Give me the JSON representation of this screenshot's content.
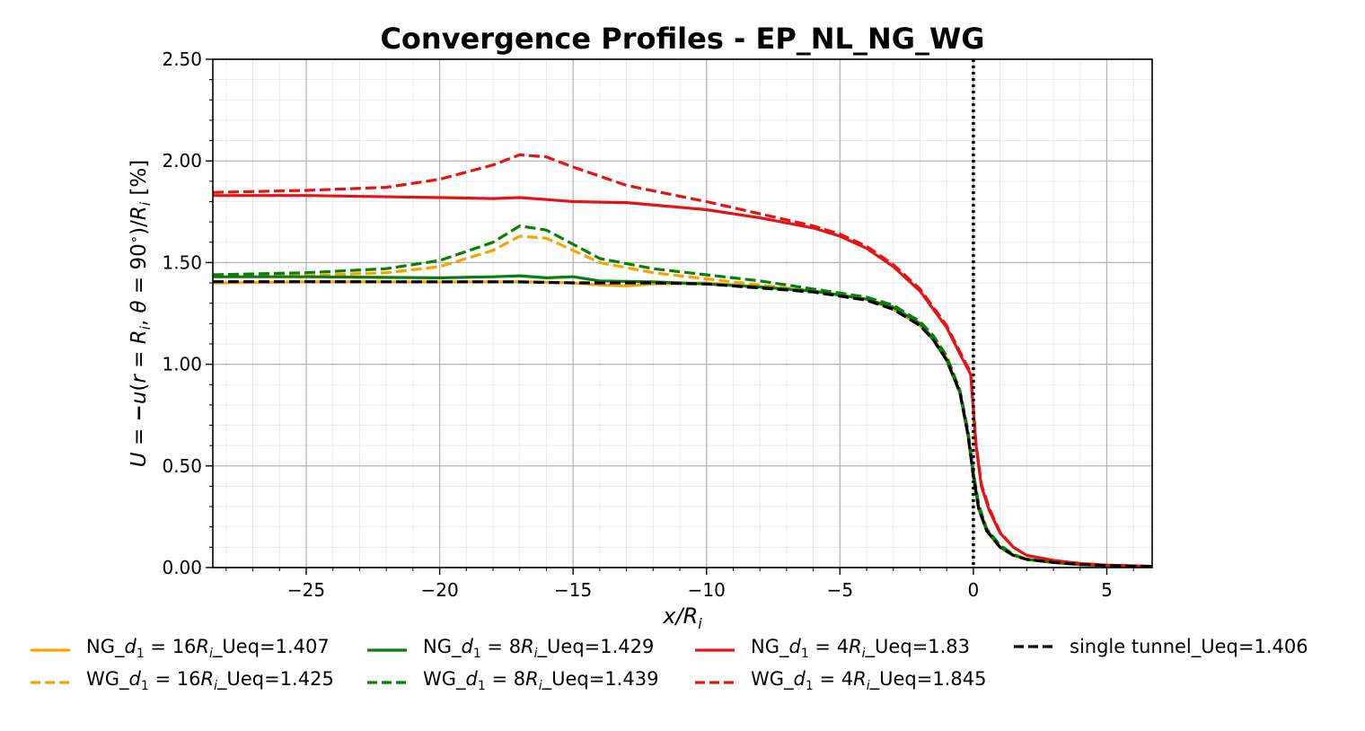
{
  "chart_data": {
    "type": "line",
    "title": "Convergence Profiles - EP_NL_NG_WG",
    "xlabel": "x/R_i",
    "ylabel": "U = −u(r = R_i, θ = 90°)/R_i [%]",
    "xlim": [
      -28.5,
      6.7
    ],
    "ylim": [
      0,
      2.5
    ],
    "xticks": [
      -25,
      -20,
      -15,
      -10,
      -5,
      0,
      5
    ],
    "xtick_labels": [
      "−25",
      "−20",
      "−15",
      "−10",
      "−5",
      "0",
      "5"
    ],
    "yticks": [
      0,
      0.5,
      1.0,
      1.5,
      2.0,
      2.5
    ],
    "ytick_labels": [
      "0.00",
      "0.50",
      "1.00",
      "1.50",
      "2.00",
      "2.50"
    ],
    "grid": true,
    "minor_grid": true,
    "vline": {
      "x": 0,
      "style": "dotted",
      "color": "#000000"
    },
    "legend_placement": "bottom",
    "series": [
      {
        "name": "NG_d1 = 16Ri_Ueq=1.407",
        "color": "#f5a300",
        "dash": "solid",
        "x": [
          -28.5,
          -25,
          -20,
          -17,
          -15,
          -14,
          -13,
          -12,
          -10,
          -8,
          -6,
          -4,
          -3,
          -2,
          -1.5,
          -1,
          -0.5,
          -0.2,
          0,
          0.2,
          0.5,
          1,
          1.5,
          2,
          3,
          4,
          5,
          6.7
        ],
        "y": [
          1.4,
          1.405,
          1.405,
          1.405,
          1.4,
          1.39,
          1.385,
          1.395,
          1.4,
          1.38,
          1.36,
          1.32,
          1.27,
          1.19,
          1.12,
          1.02,
          0.86,
          0.65,
          0.45,
          0.29,
          0.18,
          0.1,
          0.06,
          0.04,
          0.025,
          0.015,
          0.01,
          0.005
        ]
      },
      {
        "name": "WG_d1 = 16Ri_Ueq=1.425",
        "color": "#f5a300",
        "dash": "dashed",
        "x": [
          -28.5,
          -25,
          -22,
          -20,
          -18,
          -17,
          -16,
          -15,
          -14,
          -12,
          -10,
          -8,
          -6,
          -4,
          -3,
          -2,
          -1.5,
          -1,
          -0.5,
          -0.2,
          0,
          0.2,
          0.5,
          1,
          1.5,
          2,
          3,
          4,
          5,
          6.7
        ],
        "y": [
          1.43,
          1.435,
          1.45,
          1.48,
          1.56,
          1.63,
          1.62,
          1.56,
          1.5,
          1.45,
          1.42,
          1.39,
          1.36,
          1.32,
          1.28,
          1.2,
          1.13,
          1.03,
          0.86,
          0.66,
          0.46,
          0.3,
          0.19,
          0.1,
          0.06,
          0.04,
          0.025,
          0.015,
          0.01,
          0.005
        ]
      },
      {
        "name": "NG_d1 = 8Ri_Ueq=1.429",
        "color": "#0a7d0a",
        "dash": "solid",
        "x": [
          -28.5,
          -25,
          -20,
          -18,
          -17,
          -16,
          -15,
          -14,
          -12,
          -10,
          -8,
          -6,
          -4,
          -3,
          -2,
          -1.5,
          -1,
          -0.5,
          -0.2,
          0,
          0.2,
          0.5,
          1,
          1.5,
          2,
          3,
          4,
          5,
          6.7
        ],
        "y": [
          1.43,
          1.43,
          1.425,
          1.43,
          1.435,
          1.425,
          1.43,
          1.41,
          1.405,
          1.395,
          1.38,
          1.36,
          1.32,
          1.28,
          1.2,
          1.12,
          1.02,
          0.86,
          0.65,
          0.45,
          0.29,
          0.18,
          0.1,
          0.06,
          0.04,
          0.025,
          0.015,
          0.01,
          0.005
        ]
      },
      {
        "name": "WG_d1 = 8Ri_Ueq=1.439",
        "color": "#0a7d0a",
        "dash": "dashed",
        "x": [
          -28.5,
          -25,
          -22,
          -20,
          -18,
          -17,
          -16,
          -15,
          -14,
          -12,
          -10,
          -8,
          -6,
          -4,
          -3,
          -2,
          -1.5,
          -1,
          -0.5,
          -0.2,
          0,
          0.2,
          0.5,
          1,
          1.5,
          2,
          3,
          4,
          5,
          6.7
        ],
        "y": [
          1.44,
          1.45,
          1.47,
          1.51,
          1.6,
          1.68,
          1.66,
          1.59,
          1.52,
          1.47,
          1.44,
          1.41,
          1.37,
          1.33,
          1.29,
          1.21,
          1.14,
          1.04,
          0.87,
          0.67,
          0.47,
          0.31,
          0.19,
          0.11,
          0.065,
          0.04,
          0.025,
          0.015,
          0.01,
          0.005
        ]
      },
      {
        "name": "NG_d1 = 4Ri_Ueq=1.83",
        "color": "#e51414",
        "dash": "solid",
        "x": [
          -28.5,
          -25,
          -20,
          -18,
          -17,
          -16,
          -15,
          -13,
          -10,
          -8,
          -6,
          -5,
          -4,
          -3,
          -2,
          -1,
          -0.5,
          -0.1,
          0.1,
          0.3,
          0.6,
          1,
          1.5,
          2,
          3,
          4,
          5,
          6.7
        ],
        "y": [
          1.83,
          1.83,
          1.82,
          1.815,
          1.82,
          1.81,
          1.8,
          1.795,
          1.76,
          1.72,
          1.67,
          1.63,
          1.57,
          1.48,
          1.36,
          1.18,
          1.05,
          0.95,
          0.6,
          0.4,
          0.28,
          0.17,
          0.1,
          0.06,
          0.035,
          0.02,
          0.012,
          0.006
        ]
      },
      {
        "name": "WG_d1 = 4Ri_Ueq=1.845",
        "color": "#e51414",
        "dash": "dashed",
        "x": [
          -28.5,
          -25,
          -22,
          -20,
          -18,
          -17,
          -16,
          -15,
          -13,
          -10,
          -8,
          -6,
          -5,
          -4,
          -3,
          -2,
          -1,
          -0.5,
          -0.1,
          0.1,
          0.3,
          0.6,
          1,
          1.5,
          2,
          3,
          4,
          5,
          6.7
        ],
        "y": [
          1.845,
          1.855,
          1.87,
          1.91,
          1.98,
          2.03,
          2.02,
          1.97,
          1.88,
          1.8,
          1.74,
          1.68,
          1.64,
          1.58,
          1.49,
          1.37,
          1.19,
          1.06,
          0.96,
          0.61,
          0.41,
          0.29,
          0.175,
          0.1,
          0.06,
          0.035,
          0.02,
          0.012,
          0.006
        ]
      },
      {
        "name": "single tunnel_Ueq=1.406",
        "color": "#000000",
        "dash": "dashed",
        "x": [
          -28.5,
          -25,
          -20,
          -17,
          -15,
          -12,
          -10,
          -8,
          -6,
          -4,
          -3,
          -2,
          -1.5,
          -1,
          -0.5,
          -0.2,
          0,
          0.2,
          0.5,
          1,
          1.5,
          2,
          3,
          4,
          5,
          6.7
        ],
        "y": [
          1.406,
          1.406,
          1.405,
          1.405,
          1.4,
          1.4,
          1.395,
          1.375,
          1.355,
          1.315,
          1.27,
          1.19,
          1.12,
          1.02,
          0.86,
          0.65,
          0.45,
          0.29,
          0.18,
          0.1,
          0.06,
          0.04,
          0.025,
          0.015,
          0.01,
          0.005
        ]
      }
    ],
    "legend_entries": [
      {
        "label_pre": "NG_",
        "math": "d",
        "sub": "1",
        "mid": " = 16",
        "math2": "R",
        "sub2": "i",
        "label_post": "_Ueq=1.407",
        "color": "#f5a300",
        "dash": "solid"
      },
      {
        "label_pre": "NG_",
        "math": "d",
        "sub": "1",
        "mid": " = 8",
        "math2": "R",
        "sub2": "i",
        "label_post": "_Ueq=1.429",
        "color": "#0a7d0a",
        "dash": "solid"
      },
      {
        "label_pre": "NG_",
        "math": "d",
        "sub": "1",
        "mid": " = 4",
        "math2": "R",
        "sub2": "i",
        "label_post": "_Ueq=1.83",
        "color": "#e51414",
        "dash": "solid"
      },
      {
        "label_pre": "single tunnel_Ueq=1.406",
        "math": "",
        "sub": "",
        "mid": "",
        "math2": "",
        "sub2": "",
        "label_post": "",
        "color": "#000000",
        "dash": "dashed"
      },
      {
        "label_pre": "WG_",
        "math": "d",
        "sub": "1",
        "mid": " = 16",
        "math2": "R",
        "sub2": "i",
        "label_post": "_Ueq=1.425",
        "color": "#f5a300",
        "dash": "dashed"
      },
      {
        "label_pre": "WG_",
        "math": "d",
        "sub": "1",
        "mid": " = 8",
        "math2": "R",
        "sub2": "i",
        "label_post": "_Ueq=1.439",
        "color": "#0a7d0a",
        "dash": "dashed"
      },
      {
        "label_pre": "WG_",
        "math": "d",
        "sub": "1",
        "mid": " = 4",
        "math2": "R",
        "sub2": "i",
        "label_post": "_Ueq=1.845",
        "color": "#e51414",
        "dash": "dashed"
      }
    ]
  }
}
